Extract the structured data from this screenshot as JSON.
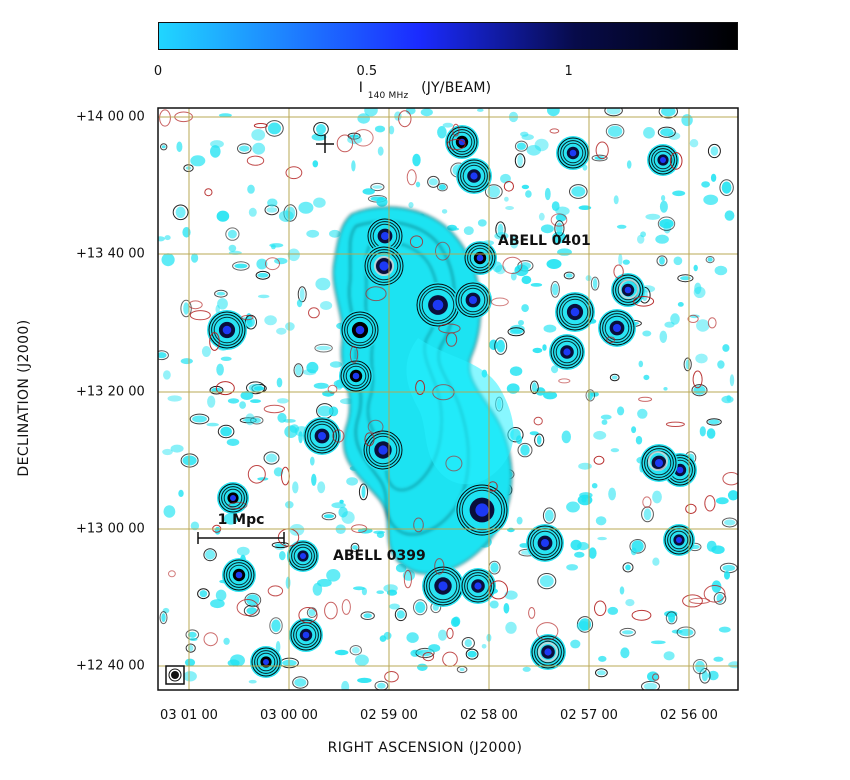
{
  "colorbar": {
    "ticks": [
      "0",
      "0.5",
      "1"
    ],
    "title_main": "I",
    "title_sub": "140 MHz",
    "title_units": "(JY/BEAM)",
    "gradient_colors": [
      "#20d6ff",
      "#1b2bff",
      "#070b4a",
      "#000000"
    ]
  },
  "axes": {
    "ylabel": "DECLINATION (J2000)",
    "xlabel": "RIGHT ASCENSION (J2000)",
    "dec_ticks": [
      "+14 00 00",
      "+13 40 00",
      "+13 20 00",
      "+13 00 00",
      "+12 40 00"
    ],
    "ra_ticks": [
      "03 01 00",
      "03 00 00",
      "02 59 00",
      "02 58 00",
      "02 57 00",
      "02 56 00"
    ]
  },
  "annotations": {
    "abell_0401": "ABELL 0401",
    "abell_0399": "ABELL 0399",
    "scale_bar": "1 Mpc"
  },
  "style": {
    "grid_color": "#b7a54d",
    "cyan": "#1fe3f2",
    "blue": "#1d3cff",
    "contour_black": "#000000",
    "contour_red": "#b21f1f"
  }
}
